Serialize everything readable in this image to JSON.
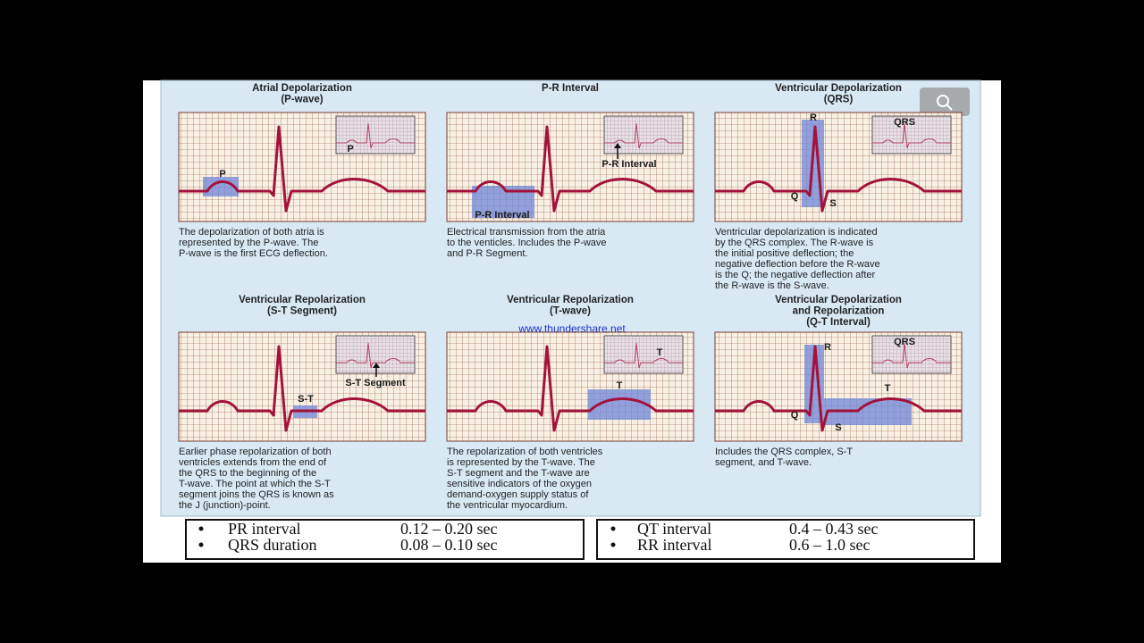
{
  "watermark": "www.thundershare.net",
  "panels": [
    {
      "title": [
        "Atrial Depolarization",
        "(P-wave)"
      ],
      "labels": [
        "P",
        "P"
      ],
      "description": [
        "The depolarization of both atria is",
        "represented by the P-wave. The",
        "P-wave is the first ECG deflection."
      ]
    },
    {
      "title": [
        "P-R Interval"
      ],
      "labels": [
        "P-R Interval",
        "P-R Interval"
      ],
      "description": [
        "Electrical transmission from the atria",
        "to  the venticles. Includes the P-wave",
        "and P-R Segment."
      ]
    },
    {
      "title": [
        "Ventricular Depolarization",
        "(QRS)"
      ],
      "labels": [
        "R",
        "QRS",
        "Q",
        "S"
      ],
      "description": [
        "Ventricular depolarization is indicated",
        "by the QRS complex. The R-wave is",
        "the initial positive deflection; the",
        "negative deflection before the R-wave",
        "is the Q; the negative deflection after",
        "the R-wave is the S-wave."
      ]
    },
    {
      "title": [
        "Ventricular Repolarization",
        "(S-T Segment)"
      ],
      "labels": [
        "S-T",
        "S-T Segment"
      ],
      "description": [
        "Earlier phase repolarization of both",
        "ventricles extends from the end of",
        "the QRS to the beginning of the",
        "T-wave. The point at which the S-T",
        "segment joins the QRS is known as",
        "the J (junction)-point."
      ]
    },
    {
      "title": [
        "Ventricular Repolarization",
        "(T-wave)"
      ],
      "labels": [
        "T",
        "T"
      ],
      "description": [
        "The repolarization of both ventricles",
        "is represented by the T-wave. The",
        "S-T segment and the T-wave are",
        "sensitive indicators of the oxygen",
        "demand-oxygen supply status of",
        "the ventricular myocardium."
      ]
    },
    {
      "title": [
        "Ventricular Depolarization",
        "and Repolarization",
        "(Q-T Interval)"
      ],
      "labels": [
        "R",
        "QRS",
        "T",
        "Q",
        "S"
      ],
      "description": [
        "Includes the QRS complex, S-T",
        "segment, and T-wave."
      ]
    }
  ],
  "intervals": [
    {
      "rows": [
        [
          "PR interval",
          "0.12 – 0.20 sec"
        ],
        [
          "QRS duration",
          "0.08 – 0.10 sec"
        ]
      ]
    },
    {
      "rows": [
        [
          "QT interval",
          "0.4 – 0.43 sec"
        ],
        [
          "RR interval",
          "0.6 – 1.0 sec"
        ]
      ]
    }
  ]
}
